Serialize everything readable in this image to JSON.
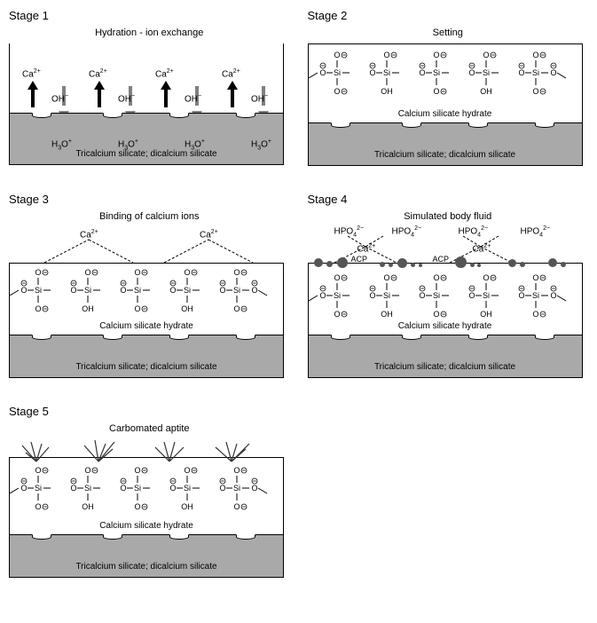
{
  "stages": {
    "s1": {
      "title": "Stage 1",
      "subtitle": "Hydration - ion exchange"
    },
    "s2": {
      "title": "Stage 2",
      "subtitle": "Setting"
    },
    "s3": {
      "title": "Stage 3",
      "subtitle": "Binding of calcium ions"
    },
    "s4": {
      "title": "Stage 4",
      "subtitle": "Simulated body fluid"
    },
    "s5": {
      "title": "Stage 5",
      "subtitle": "Carbomated aptite"
    }
  },
  "labels": {
    "base": "Tricalcium silicate; dicalcium silicate",
    "hydrate": "Calcium silicate hydrate",
    "ca": "Ca",
    "ca_sup": "2+",
    "oh": "OH",
    "oh_sup": "−",
    "h3o": "H",
    "h3o_sub": "3",
    "h3o_o": "O",
    "h3o_sup": "+",
    "hpo4": "HPO",
    "hpo4_sub": "4",
    "hpo4_sup": "2−",
    "acp": "ACP",
    "si": "Si",
    "o": "O",
    "oneg": "O",
    "ohg": "OH"
  },
  "colors": {
    "base": "#a9a9a9",
    "arrow_up": "#000000",
    "arrow_down": "#808080",
    "acp": "#555555",
    "line": "#000000"
  },
  "chain": {
    "units": 5,
    "unit_width": 56,
    "height": 52
  }
}
